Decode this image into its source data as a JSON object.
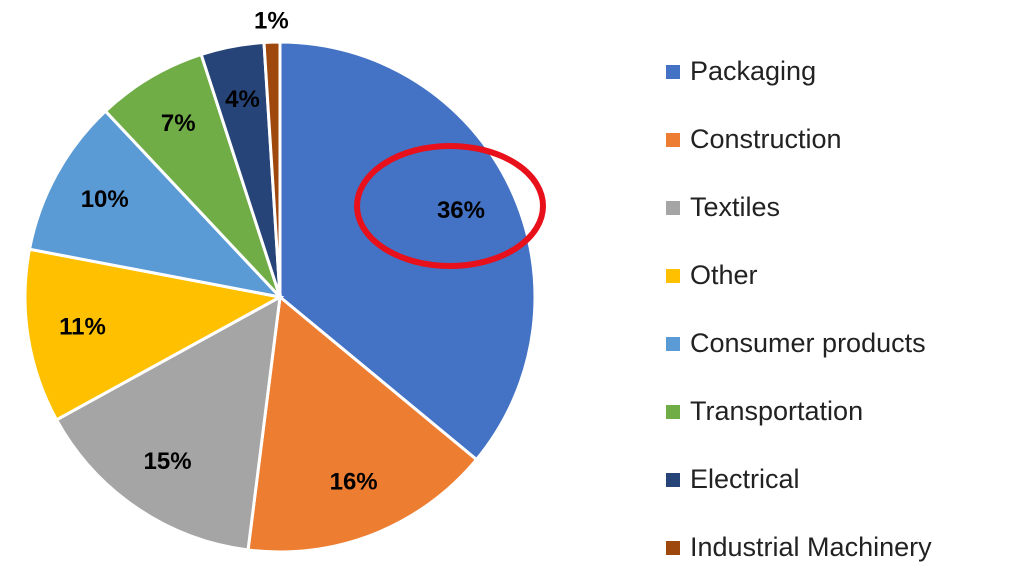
{
  "chart_data": {
    "type": "pie",
    "categories": [
      "Packaging",
      "Construction",
      "Textiles",
      "Other",
      "Consumer products",
      "Transportation",
      "Electrical",
      "Industrial Machinery"
    ],
    "values": [
      36,
      16,
      15,
      11,
      10,
      7,
      4,
      1
    ],
    "value_labels": [
      "36%",
      "16%",
      "15%",
      "11%",
      "10%",
      "7%",
      "4%",
      "1%"
    ],
    "colors": [
      "#4472c4",
      "#ed7d31",
      "#a5a5a5",
      "#ffc000",
      "#5b9bd5",
      "#70ad47",
      "#264478",
      "#9e480e"
    ],
    "legend": "right"
  }
}
